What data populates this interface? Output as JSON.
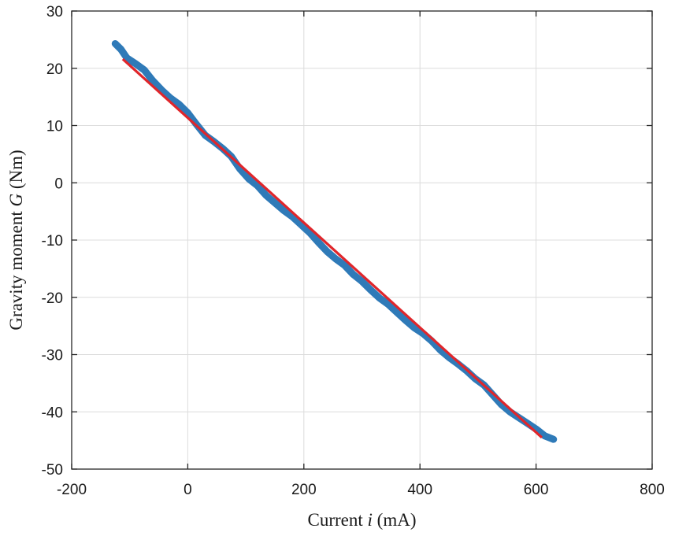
{
  "chart_data": {
    "type": "scatter",
    "title": "",
    "xlabel": {
      "pre": "Current ",
      "var": "i",
      "post": " (mA)"
    },
    "ylabel": {
      "pre": "Gravity moment ",
      "var": "G",
      "post": " (Nm)"
    },
    "xlim": [
      -200,
      800
    ],
    "ylim": [
      -50,
      30
    ],
    "xticks": [
      -200,
      0,
      200,
      400,
      600,
      800
    ],
    "yticks": [
      -50,
      -40,
      -30,
      -20,
      -10,
      0,
      10,
      20,
      30
    ],
    "xtick_labels": [
      "-200",
      "0",
      "200",
      "400",
      "600",
      "800"
    ],
    "ytick_labels": [
      "-50",
      "-40",
      "-30",
      "-20",
      "-10",
      "0",
      "10",
      "20",
      "30"
    ],
    "grid": true,
    "series": [
      {
        "kind": "points",
        "color": "#2f7ab8",
        "x": [
          -125,
          -115,
          -105,
          -90,
          -75,
          -60,
          -45,
          -30,
          -15,
          0,
          15,
          30,
          45,
          60,
          75,
          90,
          105,
          120,
          135,
          150,
          165,
          180,
          195,
          210,
          225,
          240,
          255,
          270,
          285,
          300,
          315,
          330,
          345,
          360,
          375,
          390,
          405,
          420,
          435,
          450,
          465,
          480,
          495,
          510,
          525,
          540,
          555,
          570,
          585,
          600,
          615,
          630
        ],
        "y": [
          24.3,
          23.3,
          21.8,
          20.8,
          19.7,
          17.8,
          16.2,
          14.8,
          13.7,
          12.2,
          10.2,
          8.3,
          7.2,
          6.0,
          4.6,
          2.4,
          0.7,
          -0.5,
          -2.2,
          -3.5,
          -4.8,
          -5.9,
          -7.3,
          -8.7,
          -10.4,
          -12.0,
          -13.3,
          -14.4,
          -16.0,
          -17.2,
          -18.7,
          -20.1,
          -21.2,
          -22.6,
          -24.0,
          -25.3,
          -26.3,
          -27.6,
          -29.2,
          -30.5,
          -31.6,
          -32.8,
          -34.2,
          -35.3,
          -37.0,
          -38.7,
          -40.0,
          -41.0,
          -42.0,
          -43.0,
          -44.2,
          -44.8
        ]
      },
      {
        "kind": "fit-line",
        "color": "#e0262b",
        "x": [
          -112,
          610
        ],
        "y": [
          21.6,
          -44.5
        ]
      }
    ]
  }
}
